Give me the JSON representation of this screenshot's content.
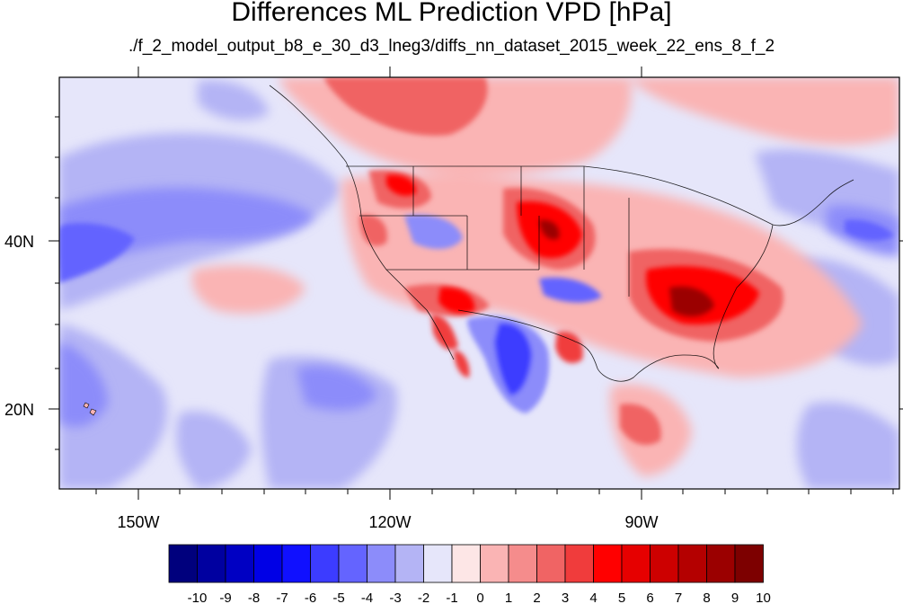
{
  "title": "Differences ML Prediction VPD [hPa]",
  "subtitle": "./f_2_model_output_b8_e_30_d3_lneg3/diffs_nn_dataset_2015_week_22_ens_8_f_2",
  "map": {
    "lon_labels": [
      "150W",
      "120W",
      "90W"
    ],
    "lat_labels": [
      "40N",
      "20N"
    ]
  },
  "colorbar": {
    "labels": [
      "-10",
      "-9",
      "-8",
      "-7",
      "-6",
      "-5",
      "-4",
      "-3",
      "-2",
      "-1",
      "0",
      "1",
      "2",
      "3",
      "4",
      "5",
      "6",
      "7",
      "8",
      "9",
      "10"
    ],
    "colors": [
      "#00007d",
      "#0000a0",
      "#0000c3",
      "#0000e6",
      "#1010ff",
      "#3c3cff",
      "#6464ff",
      "#8c8cfa",
      "#b4b4f5",
      "#e6e6fa",
      "#fde6e6",
      "#fab4b4",
      "#f58c8c",
      "#f06464",
      "#f03c3c",
      "#ff0000",
      "#e60000",
      "#cd0000",
      "#b40000",
      "#9b0000",
      "#7d0000"
    ]
  }
}
